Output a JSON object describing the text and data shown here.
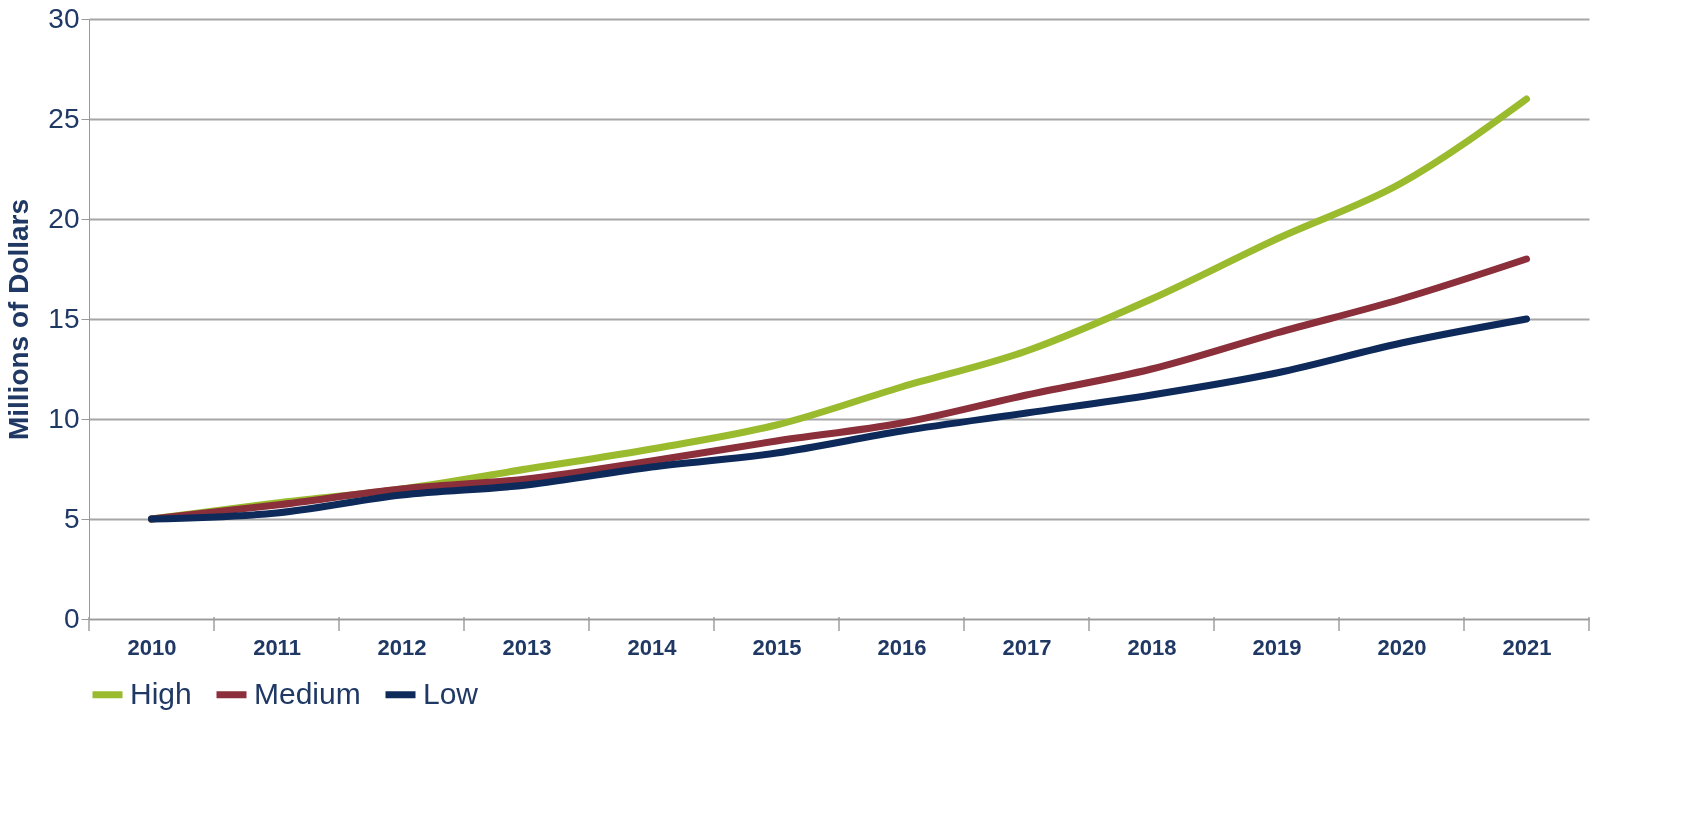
{
  "chart_data": {
    "type": "line",
    "ylabel": "Millions of Dollars",
    "categories": [
      "2010",
      "2011",
      "2012",
      "2013",
      "2014",
      "2015",
      "2016",
      "2017",
      "2018",
      "2019",
      "2020",
      "2021"
    ],
    "series": [
      {
        "name": "High",
        "color": "#9bbb2e",
        "values": [
          5,
          5.8,
          6.5,
          7.5,
          8.5,
          9.7,
          11.6,
          13.4,
          16,
          19,
          21.8,
          26
        ]
      },
      {
        "name": "Medium",
        "color": "#8b2f3a",
        "values": [
          5,
          5.7,
          6.5,
          7,
          7.9,
          8.9,
          9.8,
          11.2,
          12.5,
          14.3,
          16,
          18
        ]
      },
      {
        "name": "Low",
        "color": "#0d2a5a",
        "values": [
          5,
          5.3,
          6.2,
          6.7,
          7.6,
          8.3,
          9.4,
          10.3,
          11.2,
          12.3,
          13.8,
          15
        ]
      }
    ],
    "ylim": [
      0,
      30
    ],
    "yticks": [
      0,
      5,
      10,
      15,
      20,
      25,
      30
    ],
    "grid": "y",
    "legend": "bottom",
    "marker": "none",
    "line_style": "solid"
  }
}
